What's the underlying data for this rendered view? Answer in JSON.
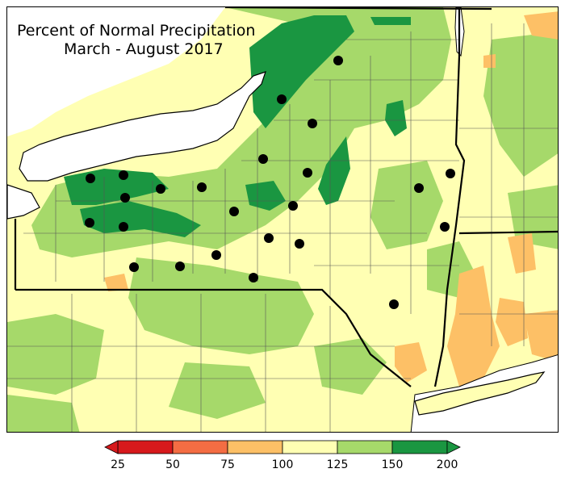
{
  "map": {
    "title_line1": "Percent of Normal Precipitation",
    "title_line2": "March - August 2017"
  },
  "legend": {
    "bins": [
      {
        "from": 25,
        "to": 50,
        "color": "#d7191c"
      },
      {
        "from": 50,
        "to": 75,
        "color": "#f46d43"
      },
      {
        "from": 75,
        "to": 100,
        "color": "#fdc066"
      },
      {
        "from": 100,
        "to": 125,
        "color": "#ffffb3"
      },
      {
        "from": 125,
        "to": 150,
        "color": "#a6d96a"
      },
      {
        "from": 150,
        "to": 200,
        "color": "#1a9641"
      }
    ],
    "tick_labels": [
      "25",
      "50",
      "75",
      "100",
      "125",
      "150",
      "200"
    ]
  },
  "colors": {
    "water": "#ffffff",
    "border": "#000000",
    "county_line": "#555555"
  }
}
